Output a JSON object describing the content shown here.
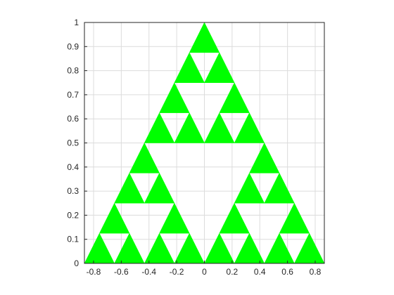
{
  "chart_data": {
    "type": "fractal-triangles",
    "title": "",
    "xlabel": "",
    "ylabel": "",
    "xlim": [
      -0.866,
      0.866
    ],
    "ylim": [
      0,
      1
    ],
    "grid": true,
    "fill_color": "#00ff00",
    "x_ticks": [
      -0.8,
      -0.6,
      -0.4,
      -0.2,
      0,
      0.2,
      0.4,
      0.6,
      0.8
    ],
    "x_tick_labels": [
      "-0.8",
      "-0.6",
      "-0.4",
      "-0.2",
      "0",
      "0.2",
      "0.4",
      "0.6",
      "0.8"
    ],
    "y_ticks": [
      0,
      0.1,
      0.2,
      0.3,
      0.4,
      0.5,
      0.6,
      0.7,
      0.8,
      0.9,
      1
    ],
    "y_tick_labels": [
      "0",
      "0.1",
      "0.2",
      "0.3",
      "0.4",
      "0.5",
      "0.6",
      "0.7",
      "0.8",
      "0.9",
      "1"
    ],
    "outer_triangle": {
      "apex": [
        0,
        1
      ],
      "base_left": [
        -0.866,
        0
      ],
      "base_right": [
        0.866,
        0
      ]
    },
    "recursion_depth": 3,
    "triangle_count": 27
  }
}
